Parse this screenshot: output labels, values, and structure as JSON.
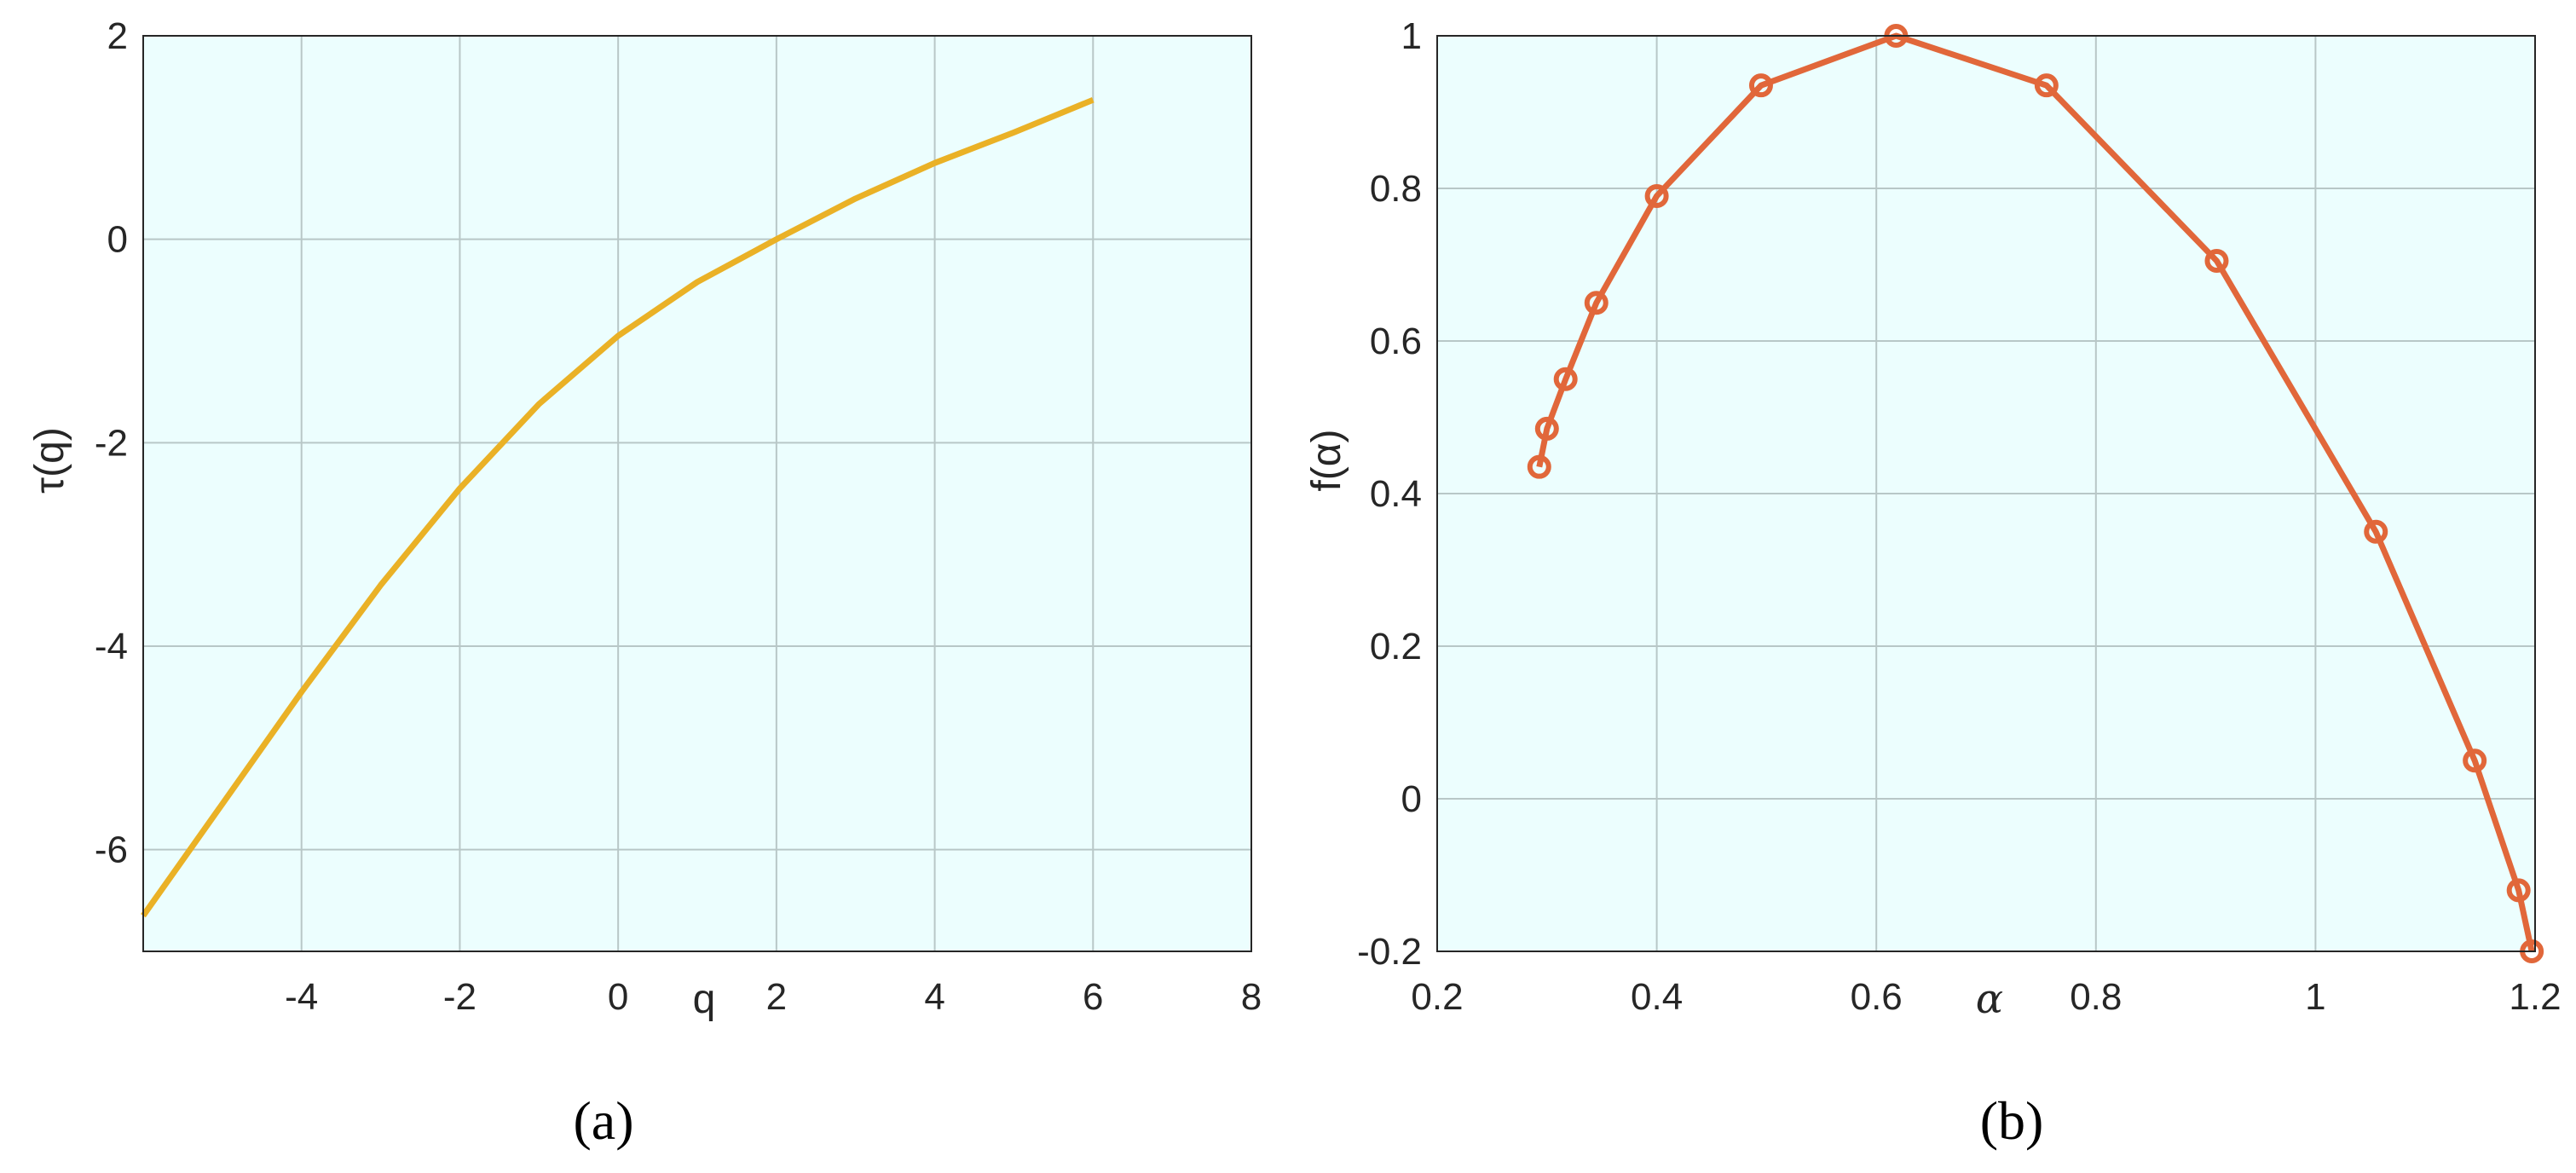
{
  "colors": {
    "plot_background": "#ecfefe",
    "series_a": "#eab126",
    "series_b": "#e1673a",
    "axis": "#262626"
  },
  "chart_data": [
    {
      "panel": "(a)",
      "type": "line",
      "xlabel": "q",
      "ylabel": "τ(q)",
      "xlim": [
        -6,
        8
      ],
      "ylim": [
        -7,
        2
      ],
      "xticks": [
        -4,
        -2,
        0,
        2,
        4,
        6,
        8
      ],
      "yticks": [
        -6,
        -4,
        -2,
        0,
        2
      ],
      "grid": true,
      "series": [
        {
          "x": [
            -6,
            -5,
            -4,
            -3,
            -2,
            -1,
            0,
            1,
            2,
            3,
            4,
            5,
            6
          ],
          "y": [
            -6.65,
            -5.55,
            -4.45,
            -3.4,
            -2.45,
            -1.62,
            -0.95,
            -0.42,
            0.0,
            0.4,
            0.75,
            1.05,
            1.37
          ]
        }
      ]
    },
    {
      "panel": "(b)",
      "type": "line",
      "xlabel": "α",
      "ylabel": "f(α)",
      "xlim": [
        0.2,
        1.2
      ],
      "ylim": [
        -0.2,
        1
      ],
      "xticks": [
        0.2,
        0.4,
        0.6,
        0.8,
        1,
        1.2
      ],
      "yticks": [
        -0.2,
        0,
        0.2,
        0.4,
        0.6,
        0.8,
        1
      ],
      "grid": true,
      "markers": "circle",
      "series": [
        {
          "x": [
            0.293,
            0.3,
            0.317,
            0.345,
            0.4,
            0.495,
            0.618,
            0.755,
            0.91,
            1.055,
            1.145,
            1.185,
            1.197
          ],
          "y": [
            0.435,
            0.485,
            0.55,
            0.65,
            0.79,
            0.935,
            1.0,
            0.935,
            0.705,
            0.35,
            0.05,
            -0.12,
            -0.2
          ]
        }
      ]
    }
  ]
}
